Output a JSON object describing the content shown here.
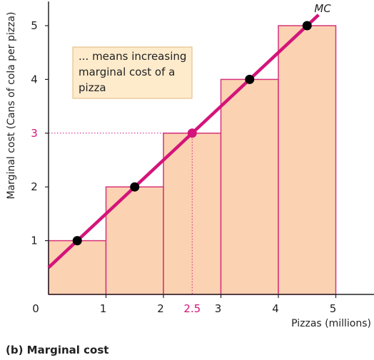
{
  "chart_data": {
    "type": "bar",
    "bars": [
      {
        "x0": 0,
        "x1": 1,
        "value": 1
      },
      {
        "x0": 1,
        "x1": 2,
        "value": 2
      },
      {
        "x0": 2,
        "x1": 3,
        "value": 3
      },
      {
        "x0": 3,
        "x1": 4,
        "value": 4
      },
      {
        "x0": 4,
        "x1": 5,
        "value": 5
      }
    ],
    "line": {
      "name": "MC",
      "start": {
        "x": 0,
        "y": 0.5
      },
      "end": {
        "x": 4.7,
        "y": 5.2
      }
    },
    "points": [
      {
        "x": 0.5,
        "y": 1,
        "highlight": false
      },
      {
        "x": 1.5,
        "y": 2,
        "highlight": false
      },
      {
        "x": 2.5,
        "y": 3,
        "highlight": true
      },
      {
        "x": 3.5,
        "y": 4,
        "highlight": false
      },
      {
        "x": 4.5,
        "y": 5,
        "highlight": false
      }
    ],
    "highlight": {
      "x": 2.5,
      "y": 3,
      "x_label": "2.5",
      "y_label": "3"
    },
    "x_ticks": [
      {
        "value": 0,
        "label": "0"
      },
      {
        "value": 1,
        "label": "1"
      },
      {
        "value": 2,
        "label": "2"
      },
      {
        "value": 3,
        "label": "3"
      },
      {
        "value": 4,
        "label": "4"
      },
      {
        "value": 5,
        "label": "5"
      }
    ],
    "y_ticks": [
      {
        "value": 1,
        "label": "1"
      },
      {
        "value": 2,
        "label": "2"
      },
      {
        "value": 4,
        "label": "4"
      },
      {
        "value": 5,
        "label": "5"
      }
    ],
    "xlabel": "Pizzas (millions)",
    "ylabel": "Marginal cost (Cans of cola per pizza)",
    "xlim": [
      0,
      5.75
    ],
    "ylim": [
      0,
      5.45
    ],
    "annotation": [
      "... means increasing",
      "marginal cost of a",
      "pizza"
    ],
    "colors": {
      "bar_fill": "#fbd3b2",
      "bar_stroke": "#d6337a",
      "line": "#d4147a",
      "point": "#000000",
      "highlight": "#d4147a",
      "annotation_bg": "#fdebcc",
      "annotation_border": "#e2b77a",
      "axis": "#222222"
    }
  },
  "caption": "(b) Marginal cost"
}
